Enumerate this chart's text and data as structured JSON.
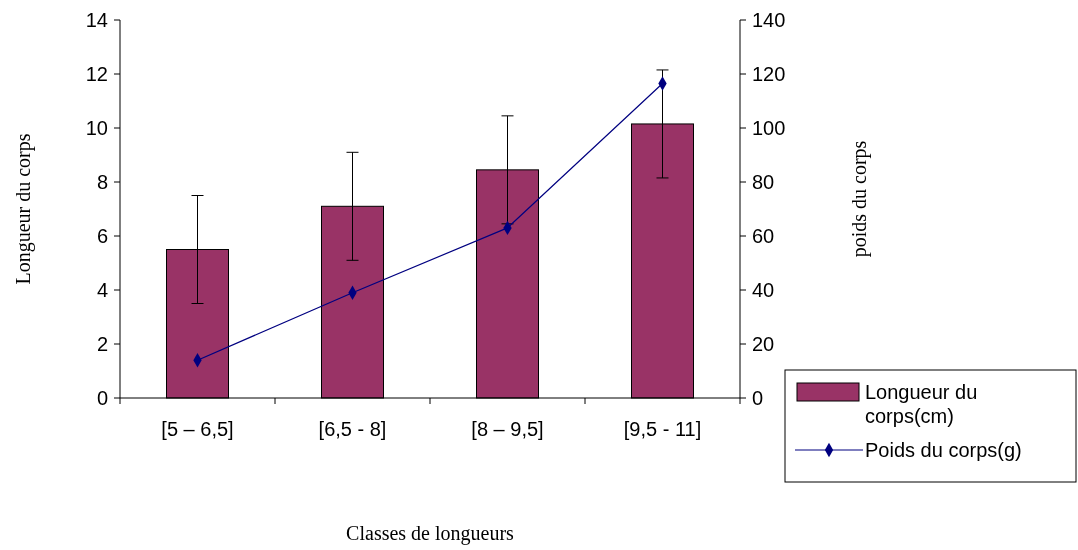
{
  "chart_data": {
    "type": "bar",
    "xlabel": "Classes de longueurs",
    "ylabel": "Longueur du corps",
    "y2label": "poids du corps",
    "categories": [
      "[5 – 6,5]",
      "[6,5 - 8]",
      "[8 – 9,5]",
      "[9,5 - 11]"
    ],
    "series": [
      {
        "name": "Longueur du corps(cm)",
        "color": "#993366",
        "values": [
          5.5,
          7.1,
          8.45,
          10.15
        ],
        "errors": [
          2,
          2,
          2,
          2
        ]
      },
      {
        "name": "Poids du corps(g)",
        "type": "line",
        "axis": "y2",
        "color": "#000080",
        "values": [
          14,
          39,
          63,
          116.5
        ],
        "marker": "diamond",
        "line_style": "solid"
      }
    ],
    "ylim": [
      0,
      14
    ],
    "yticks": [
      0,
      2,
      4,
      6,
      8,
      10,
      12,
      14
    ],
    "y2lim": [
      0,
      140
    ],
    "y2ticks": [
      0,
      20,
      40,
      60,
      80,
      100,
      120,
      140
    ],
    "grid": false,
    "legend": "bottom right"
  }
}
